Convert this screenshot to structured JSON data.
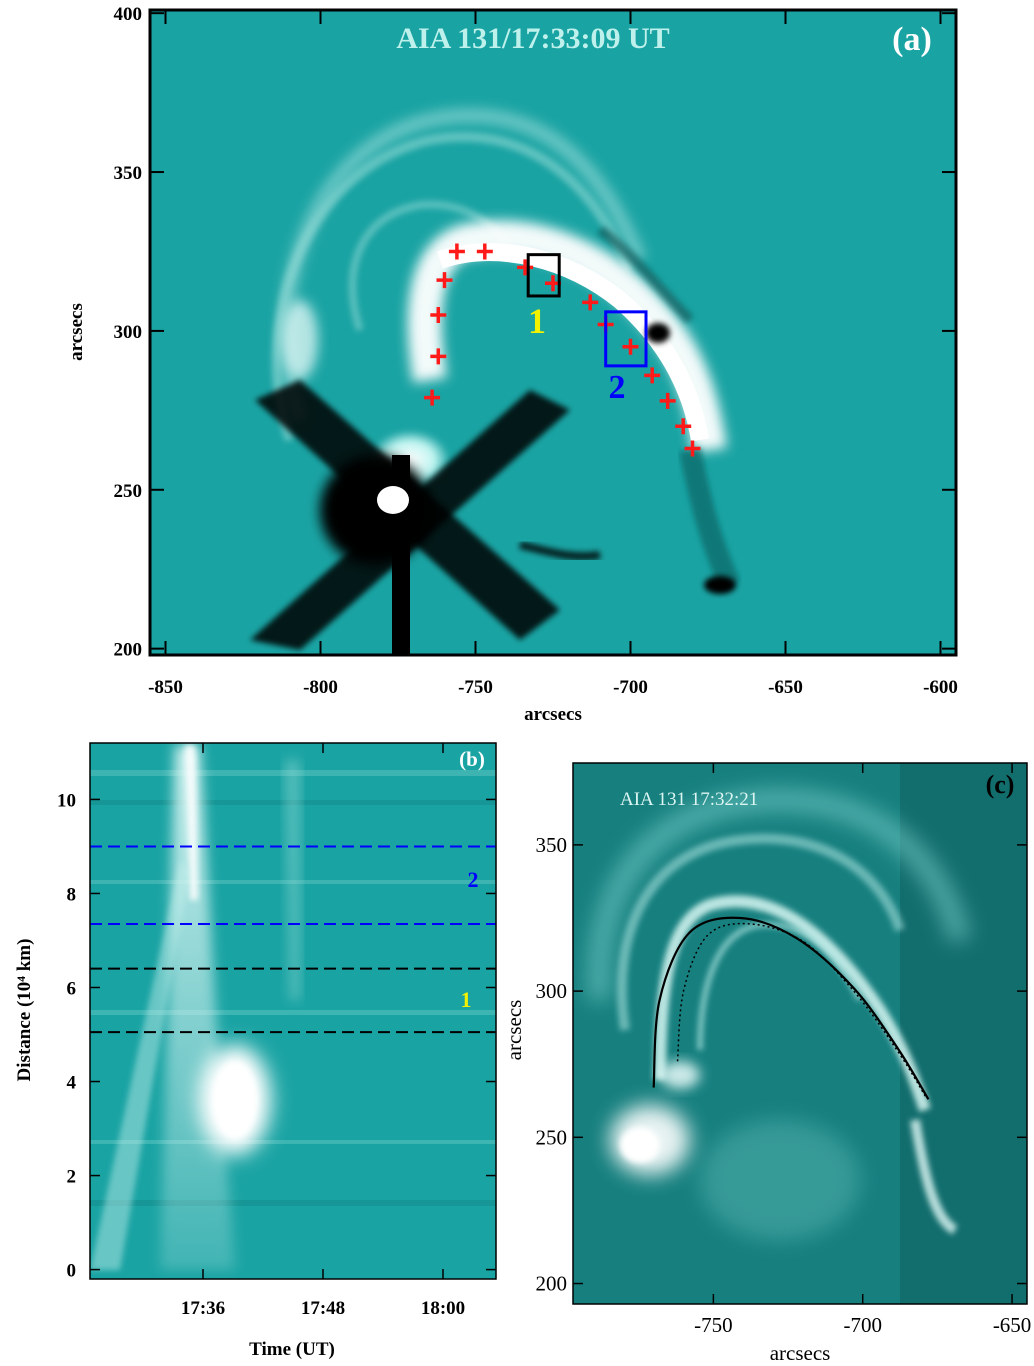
{
  "colors": {
    "background_cyan": "#1aa3a3",
    "panel_c_cyan": "#17807f",
    "marker_red": "#ff1a1a",
    "box1_color": "#000000",
    "box2_color": "#0000ff",
    "label1_color": "#f2f200",
    "label2_color": "#0000ff"
  },
  "chart_data": [
    {
      "type": "image",
      "panel": "(a)",
      "title": "AIA 131/17:33:09 UT",
      "xlabel": "arcsecs",
      "ylabel": "arcsecs",
      "xlim": [
        -855,
        -595
      ],
      "ylim": [
        198,
        401
      ],
      "xticks": [
        -850,
        -800,
        -750,
        -700,
        -650,
        -600
      ],
      "yticks": [
        200,
        250,
        300,
        350,
        400
      ],
      "markers": [
        {
          "x": -756,
          "y": 325
        },
        {
          "x": -747,
          "y": 325
        },
        {
          "x": -734,
          "y": 320
        },
        {
          "x": -725,
          "y": 315
        },
        {
          "x": -713,
          "y": 309
        },
        {
          "x": -708,
          "y": 302
        },
        {
          "x": -700,
          "y": 295
        },
        {
          "x": -693,
          "y": 286
        },
        {
          "x": -688,
          "y": 278
        },
        {
          "x": -683,
          "y": 270
        },
        {
          "x": -680,
          "y": 263
        },
        {
          "x": -760,
          "y": 316
        },
        {
          "x": -762,
          "y": 305
        },
        {
          "x": -762,
          "y": 292
        },
        {
          "x": -764,
          "y": 279
        }
      ],
      "boxes": [
        {
          "label": "1",
          "x0": -733,
          "x1": -723,
          "y0": 311,
          "y1": 324
        },
        {
          "label": "2",
          "x0": -708,
          "x1": -695,
          "y0": 289,
          "y1": 306
        }
      ]
    },
    {
      "type": "image",
      "panel": "(b)",
      "xlabel": "Time (UT)",
      "ylabel": "Distance (10⁴ km)",
      "xticks": [
        "17:36",
        "17:48",
        "18:00"
      ],
      "yticks": [
        0,
        2,
        4,
        6,
        8,
        10
      ],
      "ylim": [
        -0.2,
        11.2
      ],
      "bands": [
        {
          "label": "2",
          "y0": 7.35,
          "y1": 9.0
        },
        {
          "label": "1",
          "y0": 5.05,
          "y1": 6.4
        }
      ]
    },
    {
      "type": "image",
      "panel": "(c)",
      "title": "AIA 131 17:32:21",
      "xlabel": "arcsecs",
      "ylabel": "arcsecs",
      "xlim": [
        -797,
        -645
      ],
      "ylim": [
        193,
        378
      ],
      "xticks": [
        -750,
        -700,
        -650
      ],
      "yticks": [
        200,
        250,
        300,
        350
      ],
      "loops": [
        {
          "style": "solid",
          "points": [
            [
              -770,
              267
            ],
            [
              -768,
              297
            ],
            [
              -758,
              320
            ],
            [
              -741,
              325
            ],
            [
              -722,
              318
            ],
            [
              -703,
              301
            ],
            [
              -688,
              280
            ],
            [
              -678,
              263
            ]
          ]
        },
        {
          "style": "dotted",
          "points": [
            [
              -762,
              276
            ],
            [
              -760,
              300
            ],
            [
              -752,
              319
            ],
            [
              -738,
              323
            ],
            [
              -720,
              317
            ],
            [
              -703,
              300
            ],
            [
              -688,
              279
            ],
            [
              -679,
              264
            ]
          ]
        }
      ]
    }
  ],
  "panel_a": {
    "title": "AIA 131/17:33:09 UT",
    "label": "(a)",
    "xlabel": "arcsecs",
    "ylabel": "arcsecs",
    "box1_label": "1",
    "box2_label": "2"
  },
  "panel_b": {
    "label": "(b)",
    "xlabel": "Time (UT)",
    "ylabel": "Distance (10⁴ km)",
    "band1_label": "1",
    "band2_label": "2"
  },
  "panel_c": {
    "title": "AIA 131 17:32:21",
    "label": "(c)",
    "xlabel": "arcsecs",
    "ylabel": "arcsecs"
  }
}
